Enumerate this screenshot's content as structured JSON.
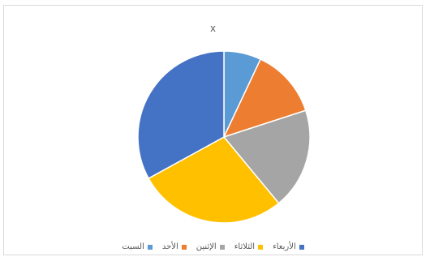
{
  "chart_data": {
    "type": "pie",
    "title": "x",
    "categories": [
      "الأربعاء",
      "الثلاثاء",
      "الإثنين",
      "الأحد",
      "السبت"
    ],
    "values": [
      33,
      28,
      19,
      13,
      7
    ],
    "colors": [
      "#4472c4",
      "#ffc000",
      "#a5a5a5",
      "#ed7d31",
      "#5b9bd5"
    ],
    "slice_order": [
      "السبت",
      "الأحد",
      "الإثنين",
      "الثلاثاء",
      "الأربعاء"
    ],
    "legend_position": "bottom",
    "legend_order_rtl": [
      "الأربعاء",
      "الثلاثاء",
      "الإثنين",
      "الأحد",
      "السبت"
    ]
  }
}
